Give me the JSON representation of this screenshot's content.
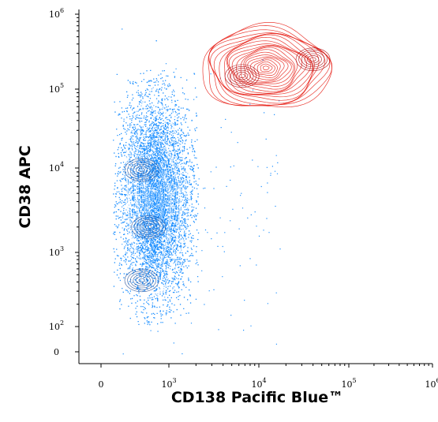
{
  "chart_data": {
    "type": "scatter",
    "subtype": "flow-cytometry density + contour plot",
    "xlabel": "CD138 Pacific Blue™",
    "ylabel": "CD38 APC",
    "x_scale": "biexponential",
    "y_scale": "biexponential",
    "x_ticks": [
      {
        "value": 0,
        "base": "0",
        "exp": ""
      },
      {
        "value": 1000,
        "base": "10",
        "exp": "3"
      },
      {
        "value": 10000,
        "base": "10",
        "exp": "4"
      },
      {
        "value": 100000,
        "base": "10",
        "exp": "5"
      },
      {
        "value": 1000000,
        "base": "10",
        "exp": "6"
      }
    ],
    "y_ticks": [
      {
        "value": 0,
        "base": "0",
        "exp": ""
      },
      {
        "value": 100,
        "base": "10",
        "exp": "2"
      },
      {
        "value": 1000,
        "base": "10",
        "exp": "3"
      },
      {
        "value": 10000,
        "base": "10",
        "exp": "4"
      },
      {
        "value": 100000,
        "base": "10",
        "exp": "5"
      },
      {
        "value": 1000000,
        "base": "10",
        "exp": "6"
      }
    ],
    "xlim": [
      -300,
      1000000
    ],
    "ylim": [
      -30,
      1000000
    ],
    "grid": false,
    "colors": {
      "cd138_negative": "#1e90ff",
      "cd138_positive": "#e8251c",
      "axis": "#000000"
    },
    "populations": [
      {
        "color_key": "cd138_negative",
        "style": "dense dots with contour lines",
        "center": [
          650,
          3000
        ],
        "x_spread": [
          200,
          2000
        ],
        "y_spread": [
          130,
          150000
        ],
        "modes": [
          [
            600,
            9500
          ],
          [
            700,
            2000
          ],
          [
            600,
            420
          ]
        ]
      },
      {
        "color_key": "cd138_positive",
        "style": "contour lines only",
        "center": [
          7000,
          170000
        ],
        "x_spread": [
          1600,
          90000
        ],
        "y_spread": [
          45000,
          850000
        ],
        "modes": [
          [
            6500,
            150000
          ],
          [
            40000,
            250000
          ]
        ]
      }
    ]
  }
}
